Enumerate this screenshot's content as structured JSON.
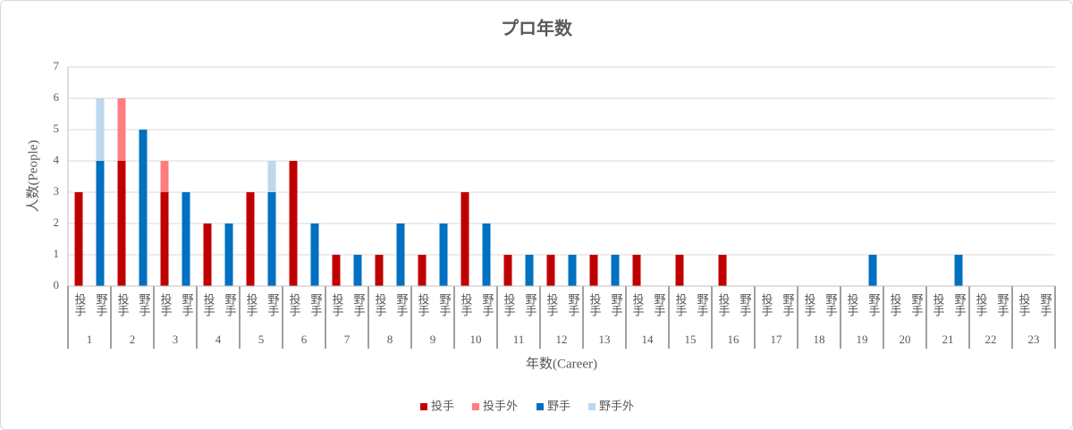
{
  "chart_data": {
    "type": "stacked_bar",
    "title": "プロ年数",
    "x_label": "年数(Career)",
    "y_label": "人数(People)",
    "groups": [
      "1",
      "2",
      "3",
      "4",
      "5",
      "6",
      "7",
      "8",
      "9",
      "10",
      "11",
      "12",
      "13",
      "14",
      "15",
      "16",
      "17",
      "18",
      "19",
      "20",
      "21",
      "22",
      "23"
    ],
    "categories": [
      "投手",
      "野手",
      "投手",
      "野手",
      "投手",
      "野手",
      "投手",
      "野手",
      "投手",
      "野手",
      "投手",
      "野手",
      "投手",
      "野手",
      "投手",
      "野手",
      "投手",
      "野手",
      "投手",
      "野手",
      "投手",
      "野手",
      "投手",
      "野手",
      "投手",
      "野手",
      "投手",
      "野手",
      "投手",
      "野手",
      "投手",
      "野手",
      "投手",
      "野手",
      "投手",
      "野手",
      "投手",
      "野手",
      "投手",
      "野手",
      "投手",
      "野手",
      "投手",
      "野手",
      "投手",
      "野手"
    ],
    "series": [
      {
        "name": "投手",
        "color": "#c00000",
        "values": [
          3,
          null,
          4,
          null,
          3,
          null,
          2,
          null,
          3,
          null,
          4,
          null,
          1,
          null,
          1,
          null,
          1,
          null,
          3,
          null,
          1,
          null,
          1,
          null,
          1,
          null,
          1,
          null,
          1,
          null,
          1,
          null,
          0,
          null,
          0,
          null,
          0,
          null,
          0,
          null,
          0,
          null,
          0,
          null,
          0,
          null
        ]
      },
      {
        "name": "投手外",
        "color": "#ff7c80",
        "values": [
          null,
          null,
          2,
          null,
          1,
          null,
          null,
          null,
          null,
          null,
          null,
          null,
          null,
          null,
          null,
          null,
          null,
          null,
          null,
          null,
          null,
          null,
          null,
          null,
          null,
          null,
          null,
          null,
          null,
          null,
          null,
          null,
          null,
          null,
          null,
          null,
          null,
          null,
          null,
          null,
          null,
          null,
          null,
          null,
          null,
          null
        ]
      },
      {
        "name": "野手",
        "color": "#0070c0",
        "values": [
          null,
          4,
          null,
          5,
          null,
          3,
          null,
          2,
          null,
          3,
          null,
          2,
          null,
          1,
          null,
          2,
          null,
          2,
          null,
          2,
          null,
          1,
          null,
          1,
          null,
          1,
          null,
          0,
          null,
          0,
          null,
          0,
          null,
          0,
          null,
          0,
          null,
          1,
          null,
          0,
          null,
          1,
          null,
          0,
          null,
          0
        ]
      },
      {
        "name": "野手外",
        "color": "#bdd7ee",
        "values": [
          null,
          2,
          null,
          null,
          null,
          null,
          null,
          null,
          null,
          1,
          null,
          null,
          null,
          null,
          null,
          null,
          null,
          null,
          null,
          null,
          null,
          null,
          null,
          null,
          null,
          null,
          null,
          null,
          null,
          null,
          null,
          null,
          null,
          null,
          null,
          null,
          null,
          null,
          null,
          null,
          null,
          null,
          null,
          null,
          null,
          null
        ]
      }
    ],
    "ylim": [
      0,
      7
    ],
    "yticks": [
      0,
      1,
      2,
      3,
      4,
      5,
      6,
      7
    ],
    "grid": true,
    "legend": "bottom"
  }
}
